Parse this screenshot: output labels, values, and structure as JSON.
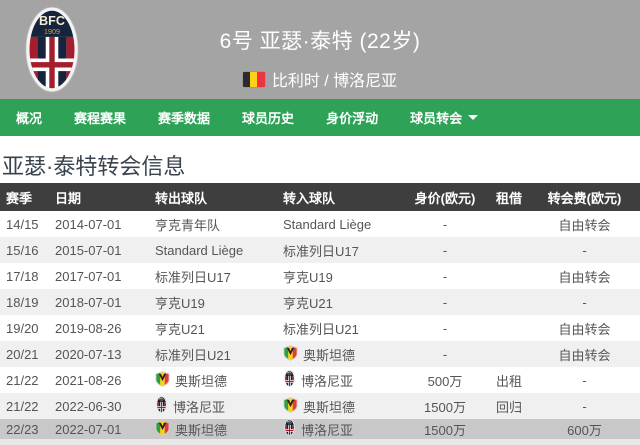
{
  "header": {
    "player_title": "6号 亚瑟·泰特 (22岁)",
    "nationality": "比利时 / 博洛尼亚",
    "flag": "belgium",
    "bg_color": "#a4a4a4"
  },
  "nav": {
    "bg_color": "#2ea358",
    "items": [
      {
        "label": "概况",
        "caret": false
      },
      {
        "label": "赛程赛果",
        "caret": false
      },
      {
        "label": "赛季数据",
        "caret": false
      },
      {
        "label": "球员历史",
        "caret": false
      },
      {
        "label": "身价浮动",
        "caret": false
      },
      {
        "label": "球员转会",
        "caret": true
      }
    ]
  },
  "section_title": "亚瑟·泰特转会信息",
  "table": {
    "headers": [
      "赛季",
      "日期",
      "转出球队",
      "转入球队",
      "身价(欧元)",
      "租借",
      "转会费(欧元)"
    ],
    "rows": [
      {
        "season": "14/15",
        "date": "2014-07-01",
        "from": "亨克青年队",
        "from_crest": null,
        "to": "Standard Liège",
        "to_crest": null,
        "value": "-",
        "loan": "",
        "fee": "自由转会",
        "highlight": false
      },
      {
        "season": "15/16",
        "date": "2015-07-01",
        "from": "Standard Liège",
        "from_crest": null,
        "to": "标准列日U17",
        "to_crest": null,
        "value": "-",
        "loan": "",
        "fee": "-",
        "highlight": false
      },
      {
        "season": "17/18",
        "date": "2017-07-01",
        "from": "标准列日U17",
        "from_crest": null,
        "to": "亨克U19",
        "to_crest": null,
        "value": "-",
        "loan": "",
        "fee": "自由转会",
        "highlight": false
      },
      {
        "season": "18/19",
        "date": "2018-07-01",
        "from": "亨克U19",
        "from_crest": null,
        "to": "亨克U21",
        "to_crest": null,
        "value": "-",
        "loan": "",
        "fee": "-",
        "highlight": false
      },
      {
        "season": "19/20",
        "date": "2019-08-26",
        "from": "亨克U21",
        "from_crest": null,
        "to": "标准列日U21",
        "to_crest": null,
        "value": "-",
        "loan": "",
        "fee": "自由转会",
        "highlight": false
      },
      {
        "season": "20/21",
        "date": "2020-07-13",
        "from": "标准列日U21",
        "from_crest": null,
        "to": "奥斯坦德",
        "to_crest": "oostende",
        "value": "-",
        "loan": "",
        "fee": "自由转会",
        "highlight": false
      },
      {
        "season": "21/22",
        "date": "2021-08-26",
        "from": "奥斯坦德",
        "from_crest": "oostende",
        "to": "博洛尼亚",
        "to_crest": "bologna",
        "value": "500万",
        "loan": "出租",
        "fee": "-",
        "highlight": false
      },
      {
        "season": "21/22",
        "date": "2022-06-30",
        "from": "博洛尼亚",
        "from_crest": "bologna",
        "to": "奥斯坦德",
        "to_crest": "oostende",
        "value": "1500万",
        "loan": "回归",
        "fee": "-",
        "highlight": false
      },
      {
        "season": "22/23",
        "date": "2022-07-01",
        "from": "奥斯坦德",
        "from_crest": "oostende",
        "to": "博洛尼亚",
        "to_crest": "bologna",
        "value": "1500万",
        "loan": "",
        "fee": "600万",
        "highlight": true
      }
    ]
  },
  "colors": {
    "nav_green": "#2ea358",
    "header_gray": "#a4a4a4",
    "table_head_bg": "#3e3e3e",
    "row_alt": "#f0f0f0",
    "row_highlight": "#c8c8c8",
    "bologna_navy": "#16233d",
    "bologna_red": "#a51e2d",
    "oostende_green": "#2f9e43",
    "oostende_yellow": "#ffd400",
    "oostende_red": "#e23b3b"
  }
}
